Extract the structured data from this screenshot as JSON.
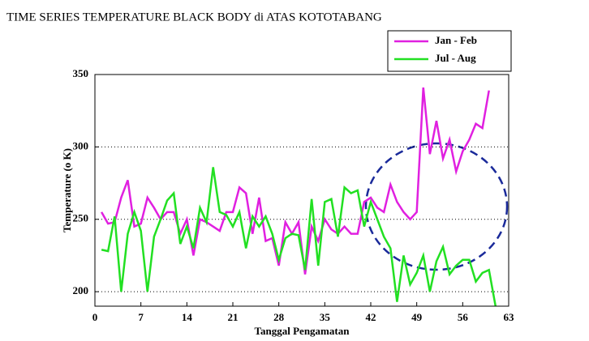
{
  "chart_data": {
    "type": "line",
    "title": "TIME SERIES TEMPERATURE BLACK BODY di ATAS KOTOTABANG",
    "x_label": "Tanggal Pengamatan",
    "y_label": "Temperature (o K)",
    "x": [
      1,
      2,
      3,
      4,
      5,
      6,
      7,
      8,
      9,
      10,
      11,
      12,
      13,
      14,
      15,
      16,
      17,
      18,
      19,
      20,
      21,
      22,
      23,
      24,
      25,
      26,
      27,
      28,
      29,
      30,
      31,
      32,
      33,
      34,
      35,
      36,
      37,
      38,
      39,
      40,
      41,
      42,
      43,
      44,
      45,
      46,
      47,
      48,
      49,
      50,
      51,
      52,
      53,
      54,
      55,
      56,
      57,
      58,
      59,
      60,
      61
    ],
    "series": [
      {
        "name": "Jan - Feb",
        "color": "#e020e0",
        "values": [
          255,
          247,
          248,
          265,
          277,
          245,
          247,
          265,
          258,
          250,
          255,
          255,
          240,
          250,
          225,
          250,
          248,
          245,
          242,
          255,
          255,
          272,
          268,
          240,
          265,
          235,
          237,
          218,
          248,
          240,
          248,
          212,
          245,
          235,
          250,
          243,
          240,
          245,
          240,
          240,
          262,
          265,
          258,
          255,
          274,
          262,
          255,
          250,
          255,
          341,
          295,
          318,
          292,
          305,
          283,
          297,
          305,
          316,
          313,
          339,
          null
        ]
      },
      {
        "name": "Jul - Aug",
        "color": "#22e022",
        "values": [
          229,
          228,
          252,
          200,
          240,
          255,
          242,
          200,
          238,
          250,
          263,
          268,
          233,
          245,
          230,
          258,
          248,
          286,
          255,
          253,
          245,
          255,
          230,
          252,
          245,
          252,
          240,
          222,
          237,
          240,
          239,
          215,
          264,
          218,
          262,
          264,
          238,
          272,
          268,
          270,
          245,
          262,
          250,
          238,
          230,
          193,
          225,
          205,
          213,
          225,
          200,
          221,
          231,
          212,
          218,
          222,
          222,
          207,
          213,
          215,
          190
        ]
      }
    ],
    "xlim": [
      0,
      63
    ],
    "xticks": [
      0,
      7,
      14,
      21,
      28,
      35,
      42,
      49,
      56,
      63
    ],
    "ylim": [
      190,
      350
    ],
    "yticks": [
      200,
      250,
      300,
      350
    ],
    "grid": true,
    "legend": "top-right"
  }
}
